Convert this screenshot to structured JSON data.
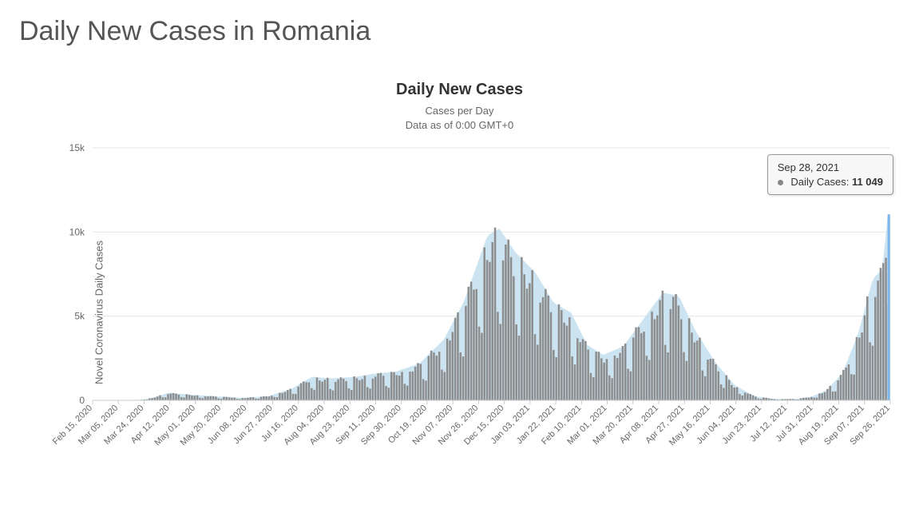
{
  "page_title": "Daily New Cases in Romania",
  "chart": {
    "type": "bar",
    "title": "Daily New Cases",
    "subtitle_line1": "Cases per Day",
    "subtitle_line2": "Data as of 0:00 GMT+0",
    "y_axis_label": "Novel Coronavirus Daily Cases",
    "ylim": [
      0,
      15000
    ],
    "yticks": [
      0,
      5000,
      10000,
      15000
    ],
    "ytick_labels": [
      "0",
      "5k",
      "10k",
      "15k"
    ],
    "bar_color": "#8d8d8d",
    "area_color": "#c9e3f0",
    "grid_color": "#e6e6e6",
    "axis_line_color": "#cccccc",
    "tick_text_color": "#666666",
    "background_color": "#ffffff",
    "highlight_color": "#7cb5ec",
    "x_start_label": "Feb 15, 2020",
    "x_end_label": "Sep 28, 2021",
    "x_tick_labels": [
      "Feb 15, 2020",
      "Mar 05, 2020",
      "Mar 24, 2020",
      "Apr 12, 2020",
      "May 01, 2020",
      "May 20, 2020",
      "Jun 08, 2020",
      "Jun 27, 2020",
      "Jul 16, 2020",
      "Aug 04, 2020",
      "Aug 23, 2020",
      "Sep 11, 2020",
      "Sep 30, 2020",
      "Oct 19, 2020",
      "Nov 07, 2020",
      "Nov 26, 2020",
      "Dec 15, 2020",
      "Jan 03, 2021",
      "Jan 22, 2021",
      "Feb 10, 2021",
      "Mar 01, 2021",
      "Mar 20, 2021",
      "Apr 08, 2021",
      "Apr 27, 2021",
      "May 16, 2021",
      "Jun 04, 2021",
      "Jun 23, 2021",
      "Jul 12, 2021",
      "Jul 31, 2021",
      "Aug 19, 2021",
      "Sep 07, 2021",
      "Sep 26, 2021"
    ],
    "envelope": [
      {
        "t": 0.0,
        "v": 0
      },
      {
        "t": 0.06,
        "v": 30
      },
      {
        "t": 0.075,
        "v": 150
      },
      {
        "t": 0.095,
        "v": 450
      },
      {
        "t": 0.12,
        "v": 350
      },
      {
        "t": 0.15,
        "v": 250
      },
      {
        "t": 0.19,
        "v": 150
      },
      {
        "t": 0.22,
        "v": 250
      },
      {
        "t": 0.25,
        "v": 700
      },
      {
        "t": 0.275,
        "v": 1400
      },
      {
        "t": 0.3,
        "v": 1300
      },
      {
        "t": 0.33,
        "v": 1400
      },
      {
        "t": 0.355,
        "v": 1600
      },
      {
        "t": 0.38,
        "v": 1700
      },
      {
        "t": 0.41,
        "v": 2200
      },
      {
        "t": 0.44,
        "v": 3600
      },
      {
        "t": 0.465,
        "v": 5800
      },
      {
        "t": 0.495,
        "v": 9800
      },
      {
        "t": 0.51,
        "v": 10200
      },
      {
        "t": 0.53,
        "v": 8800
      },
      {
        "t": 0.555,
        "v": 7600
      },
      {
        "t": 0.578,
        "v": 5800
      },
      {
        "t": 0.6,
        "v": 5200
      },
      {
        "t": 0.62,
        "v": 3300
      },
      {
        "t": 0.64,
        "v": 2700
      },
      {
        "t": 0.665,
        "v": 3200
      },
      {
        "t": 0.69,
        "v": 4800
      },
      {
        "t": 0.715,
        "v": 6400
      },
      {
        "t": 0.735,
        "v": 6200
      },
      {
        "t": 0.755,
        "v": 4200
      },
      {
        "t": 0.78,
        "v": 2300
      },
      {
        "t": 0.805,
        "v": 900
      },
      {
        "t": 0.83,
        "v": 250
      },
      {
        "t": 0.855,
        "v": 80
      },
      {
        "t": 0.88,
        "v": 80
      },
      {
        "t": 0.9,
        "v": 200
      },
      {
        "t": 0.92,
        "v": 600
      },
      {
        "t": 0.94,
        "v": 1600
      },
      {
        "t": 0.96,
        "v": 4000
      },
      {
        "t": 0.978,
        "v": 7200
      },
      {
        "t": 0.99,
        "v": 7800
      },
      {
        "t": 0.997,
        "v": 11049
      }
    ],
    "weekly_dip_ratio": 0.45
  },
  "tooltip": {
    "date": "Sep 28, 2021",
    "series_label": "Daily Cases:",
    "value": "11 049"
  }
}
